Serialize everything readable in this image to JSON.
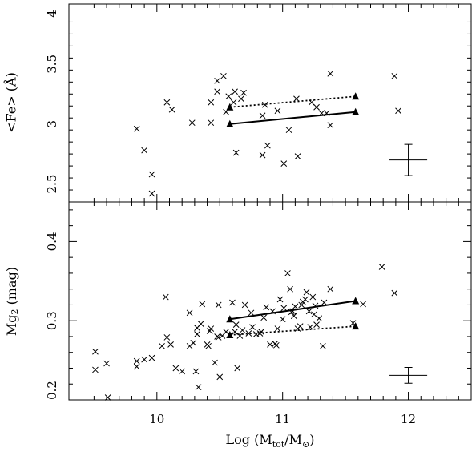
{
  "chart_data": [
    {
      "panel": "top",
      "type": "scatter",
      "ylabel": "<Fe> (Å)",
      "xlim": [
        9.3,
        12.5
      ],
      "ylim": [
        2.35,
        4.0
      ],
      "yticks": [
        2.5,
        3,
        3.5,
        4
      ],
      "ytick_labels": [
        "2.5",
        "3",
        "3.5",
        "4"
      ],
      "series": [
        {
          "marker": "x",
          "points": [
            [
              9.84,
              2.96
            ],
            [
              9.9,
              2.78
            ],
            [
              9.96,
              2.58
            ],
            [
              9.96,
              2.42
            ],
            [
              10.08,
              3.18
            ],
            [
              10.12,
              3.12
            ],
            [
              10.28,
              3.01
            ],
            [
              10.43,
              3.01
            ],
            [
              10.43,
              3.18
            ],
            [
              10.48,
              3.27
            ],
            [
              10.48,
              3.36
            ],
            [
              10.53,
              3.4
            ],
            [
              10.55,
              3.1
            ],
            [
              10.57,
              3.23
            ],
            [
              10.61,
              3.18
            ],
            [
              10.62,
              3.27
            ],
            [
              10.63,
              2.76
            ],
            [
              10.67,
              3.21
            ],
            [
              10.69,
              3.26
            ],
            [
              10.84,
              3.07
            ],
            [
              10.84,
              2.74
            ],
            [
              10.86,
              3.16
            ],
            [
              10.88,
              2.82
            ],
            [
              10.96,
              3.11
            ],
            [
              11.01,
              2.67
            ],
            [
              11.05,
              2.95
            ],
            [
              11.11,
              3.21
            ],
            [
              11.12,
              2.73
            ],
            [
              11.23,
              3.18
            ],
            [
              11.27,
              3.14
            ],
            [
              11.31,
              3.09
            ],
            [
              11.35,
              3.09
            ],
            [
              11.38,
              3.42
            ],
            [
              11.38,
              2.99
            ],
            [
              11.89,
              3.4
            ],
            [
              11.92,
              3.11
            ]
          ]
        },
        {
          "style": "solid",
          "marker": "triangle",
          "points": [
            [
              10.58,
              3.0
            ],
            [
              11.58,
              3.1
            ]
          ]
        },
        {
          "style": "dotted",
          "marker": "triangle",
          "points": [
            [
              10.58,
              3.14
            ],
            [
              11.58,
              3.23
            ]
          ]
        }
      ],
      "error_bar": {
        "x": 12.0,
        "y": 2.7,
        "dx": 0.15,
        "dy": 0.13
      }
    },
    {
      "panel": "bottom",
      "type": "scatter",
      "xlabel_main": "Log (M",
      "xlabel_sub1": "tot",
      "xlabel_mid": "/M",
      "xlabel_sun": "⊙",
      "xlabel_end": ")",
      "ylabel_main": "Mg",
      "ylabel_sub": "2",
      "ylabel_end": " (mag)",
      "xlim": [
        9.3,
        12.5
      ],
      "ylim": [
        0.2,
        0.45
      ],
      "xticks": [
        10,
        11,
        12
      ],
      "xtick_labels": [
        "10",
        "11",
        "12"
      ],
      "yticks": [
        0.2,
        0.3,
        0.4
      ],
      "ytick_labels": [
        "0.2",
        "0.3",
        "0.4"
      ],
      "series": [
        {
          "marker": "x",
          "points": [
            [
              9.51,
              0.261
            ],
            [
              9.51,
              0.238
            ],
            [
              9.6,
              0.246
            ],
            [
              9.61,
              0.203
            ],
            [
              9.84,
              0.249
            ],
            [
              9.84,
              0.242
            ],
            [
              9.9,
              0.251
            ],
            [
              9.96,
              0.253
            ],
            [
              10.04,
              0.268
            ],
            [
              10.07,
              0.33
            ],
            [
              10.08,
              0.279
            ],
            [
              10.11,
              0.27
            ],
            [
              10.15,
              0.24
            ],
            [
              10.2,
              0.236
            ],
            [
              10.26,
              0.31
            ],
            [
              10.26,
              0.268
            ],
            [
              10.29,
              0.272
            ],
            [
              10.31,
              0.236
            ],
            [
              10.32,
              0.283
            ],
            [
              10.32,
              0.291
            ],
            [
              10.33,
              0.216
            ],
            [
              10.35,
              0.296
            ],
            [
              10.36,
              0.321
            ],
            [
              10.4,
              0.27
            ],
            [
              10.41,
              0.268
            ],
            [
              10.42,
              0.287
            ],
            [
              10.43,
              0.29
            ],
            [
              10.46,
              0.247
            ],
            [
              10.48,
              0.28
            ],
            [
              10.49,
              0.279
            ],
            [
              10.49,
              0.32
            ],
            [
              10.5,
              0.229
            ],
            [
              10.52,
              0.281
            ],
            [
              10.55,
              0.286
            ],
            [
              10.58,
              0.282
            ],
            [
              10.6,
              0.323
            ],
            [
              10.62,
              0.286
            ],
            [
              10.63,
              0.295
            ],
            [
              10.64,
              0.24
            ],
            [
              10.66,
              0.281
            ],
            [
              10.68,
              0.288
            ],
            [
              10.7,
              0.32
            ],
            [
              10.73,
              0.284
            ],
            [
              10.75,
              0.31
            ],
            [
              10.76,
              0.292
            ],
            [
              10.79,
              0.283
            ],
            [
              10.82,
              0.284
            ],
            [
              10.83,
              0.286
            ],
            [
              10.85,
              0.304
            ],
            [
              10.87,
              0.317
            ],
            [
              10.9,
              0.27
            ],
            [
              10.92,
              0.312
            ],
            [
              10.94,
              0.271
            ],
            [
              10.95,
              0.269
            ],
            [
              10.96,
              0.29
            ],
            [
              10.98,
              0.327
            ],
            [
              11.0,
              0.302
            ],
            [
              11.01,
              0.316
            ],
            [
              11.04,
              0.36
            ],
            [
              11.06,
              0.34
            ],
            [
              11.07,
              0.311
            ],
            [
              11.08,
              0.312
            ],
            [
              11.09,
              0.306
            ],
            [
              11.1,
              0.318
            ],
            [
              11.12,
              0.29
            ],
            [
              11.14,
              0.293
            ],
            [
              11.15,
              0.32
            ],
            [
              11.16,
              0.324
            ],
            [
              11.18,
              0.327
            ],
            [
              11.19,
              0.336
            ],
            [
              11.21,
              0.312
            ],
            [
              11.22,
              0.292
            ],
            [
              11.24,
              0.33
            ],
            [
              11.25,
              0.308
            ],
            [
              11.26,
              0.319
            ],
            [
              11.27,
              0.295
            ],
            [
              11.29,
              0.303
            ],
            [
              11.32,
              0.268
            ],
            [
              11.33,
              0.323
            ],
            [
              11.38,
              0.34
            ],
            [
              11.56,
              0.297
            ],
            [
              11.64,
              0.321
            ],
            [
              11.79,
              0.368
            ],
            [
              11.89,
              0.335
            ]
          ]
        },
        {
          "style": "solid",
          "marker": "triangle",
          "points": [
            [
              10.58,
              0.302
            ],
            [
              11.58,
              0.325
            ]
          ]
        },
        {
          "style": "dotted",
          "marker": "triangle",
          "points": [
            [
              10.58,
              0.282
            ],
            [
              11.58,
              0.293
            ]
          ]
        }
      ],
      "error_bar": {
        "x": 12.0,
        "y": 0.231,
        "dx": 0.15,
        "dy": 0.01
      }
    }
  ]
}
